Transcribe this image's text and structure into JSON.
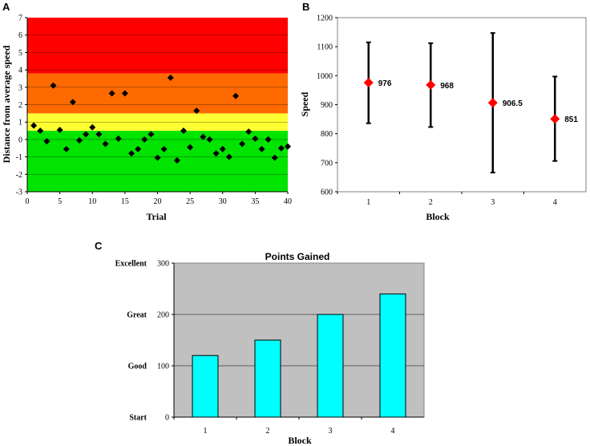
{
  "chart_data": [
    {
      "panel": "A",
      "type": "scatter",
      "title": "",
      "xlabel": "Trial",
      "ylabel": "Distance from average speed",
      "xlim": [
        0,
        40
      ],
      "ylim": [
        -3,
        7
      ],
      "xticks": [
        0,
        5,
        10,
        15,
        20,
        25,
        30,
        35,
        40
      ],
      "yticks": [
        -3,
        -2,
        -1,
        0,
        1,
        2,
        3,
        4,
        5,
        6,
        7
      ],
      "bands": [
        {
          "from": -3,
          "to": 0.5,
          "color": "#00e400"
        },
        {
          "from": 0.5,
          "to": 1.5,
          "color": "#ffff33"
        },
        {
          "from": 1.5,
          "to": 3.8,
          "color": "#ff6a00"
        },
        {
          "from": 3.8,
          "to": 7,
          "color": "#ff0000"
        }
      ],
      "marker_color": "#000000",
      "x": [
        1,
        2,
        3,
        4,
        5,
        6,
        7,
        8,
        9,
        10,
        11,
        12,
        13,
        14,
        15,
        16,
        17,
        18,
        19,
        20,
        21,
        22,
        23,
        24,
        25,
        26,
        27,
        28,
        29,
        30,
        31,
        32,
        33,
        34,
        35,
        36,
        37,
        38,
        39,
        40
      ],
      "y": [
        0.8,
        0.5,
        -0.1,
        3.1,
        0.55,
        -0.55,
        2.15,
        -0.05,
        0.3,
        0.7,
        0.3,
        -0.25,
        2.65,
        0.05,
        2.65,
        -0.8,
        -0.55,
        0.0,
        0.3,
        -1.05,
        -0.55,
        3.55,
        -1.2,
        0.5,
        -0.45,
        1.65,
        0.15,
        0.0,
        -0.8,
        -0.55,
        -1.0,
        2.5,
        -0.25,
        0.45,
        0.05,
        -0.55,
        0.0,
        -1.05,
        -0.5,
        -0.4
      ]
    },
    {
      "panel": "B",
      "type": "errorbar",
      "title": "",
      "xlabel": "Block",
      "ylabel": "Speed",
      "ylim": [
        600,
        1200
      ],
      "yticks": [
        600,
        700,
        800,
        900,
        1000,
        1100,
        1200
      ],
      "categories": [
        "1",
        "2",
        "3",
        "4"
      ],
      "values": [
        976,
        968,
        906.5,
        851
      ],
      "value_labels": [
        "976",
        "968",
        "906.5",
        "851"
      ],
      "upper": [
        1115,
        1112,
        1147,
        997
      ],
      "lower": [
        836,
        823,
        666,
        706
      ],
      "marker_color": "#ff0000"
    },
    {
      "panel": "C",
      "type": "bar",
      "title": "Points Gained",
      "xlabel": "Block",
      "ylabel": "",
      "ylim": [
        0,
        300
      ],
      "yticks": [
        0,
        100,
        200,
        300
      ],
      "ytick_text_labels": [
        "Start",
        "Good",
        "Great",
        "Excellent"
      ],
      "categories": [
        "1",
        "2",
        "3",
        "4"
      ],
      "values": [
        120,
        150,
        200,
        240
      ],
      "bar_color": "#00ffff",
      "background": "#c0c0c0"
    }
  ]
}
